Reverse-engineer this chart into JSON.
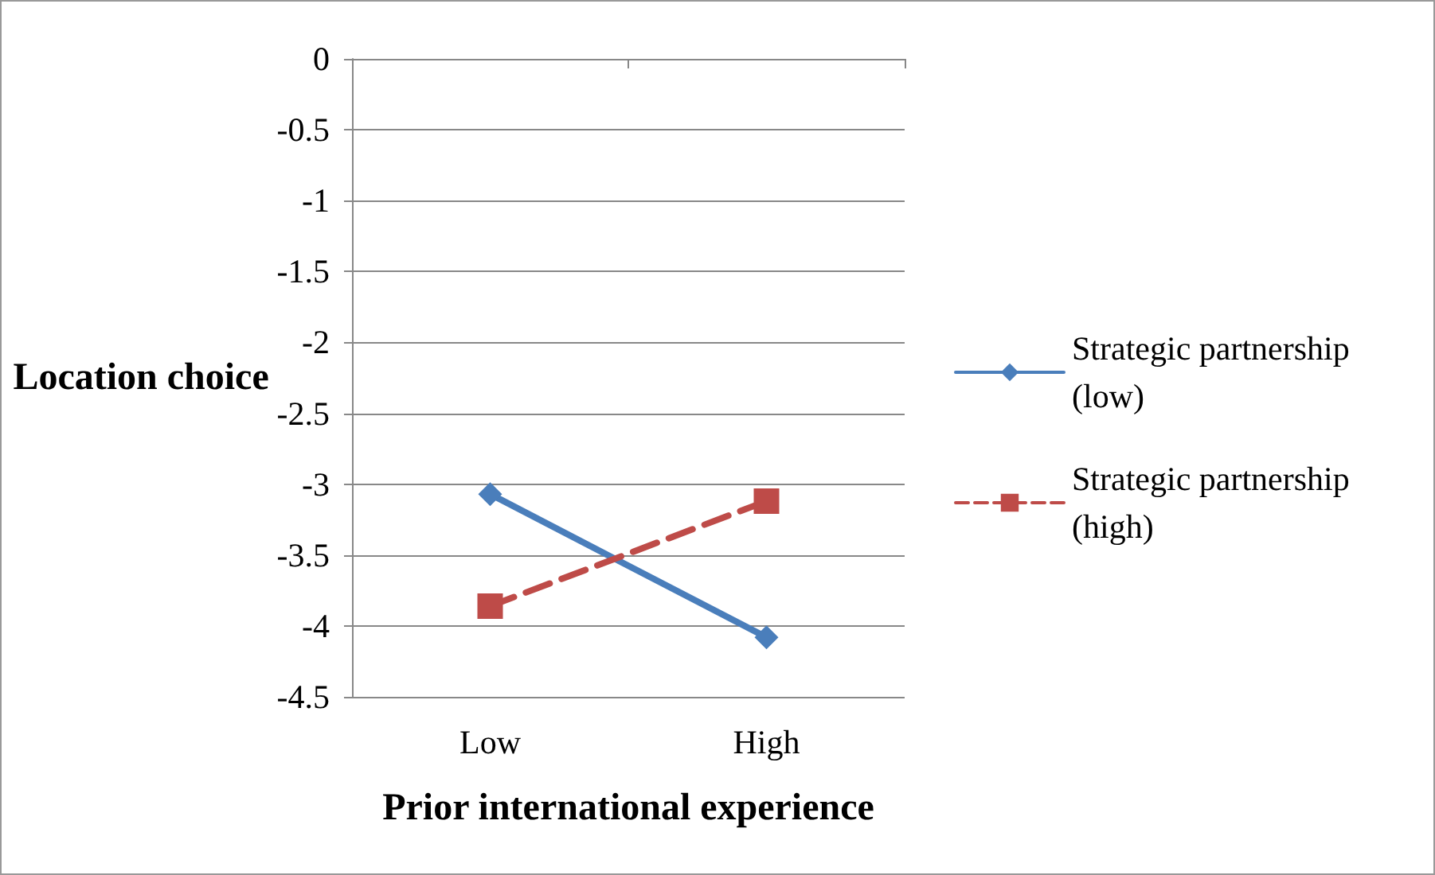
{
  "chart_data": {
    "type": "line",
    "xlabel": "Prior international experience",
    "ylabel": "Location choice",
    "categories": [
      "Low",
      "High"
    ],
    "series": [
      {
        "name": "Strategic partnership (low)",
        "color": "#4a7ebb",
        "values": [
          -3.07,
          -4.08
        ],
        "marker": "diamond",
        "line_style": "solid"
      },
      {
        "name": "Strategic partnership (high)",
        "color": "#be4b48",
        "values": [
          -3.86,
          -3.12
        ],
        "marker": "square",
        "line_style": "dashed"
      }
    ],
    "ylim": [
      -4.5,
      0
    ],
    "yticks": [
      0,
      -0.5,
      -1,
      -1.5,
      -2,
      -2.5,
      -3,
      -3.5,
      -4,
      -4.5
    ],
    "grid": "y",
    "legend": "right"
  }
}
